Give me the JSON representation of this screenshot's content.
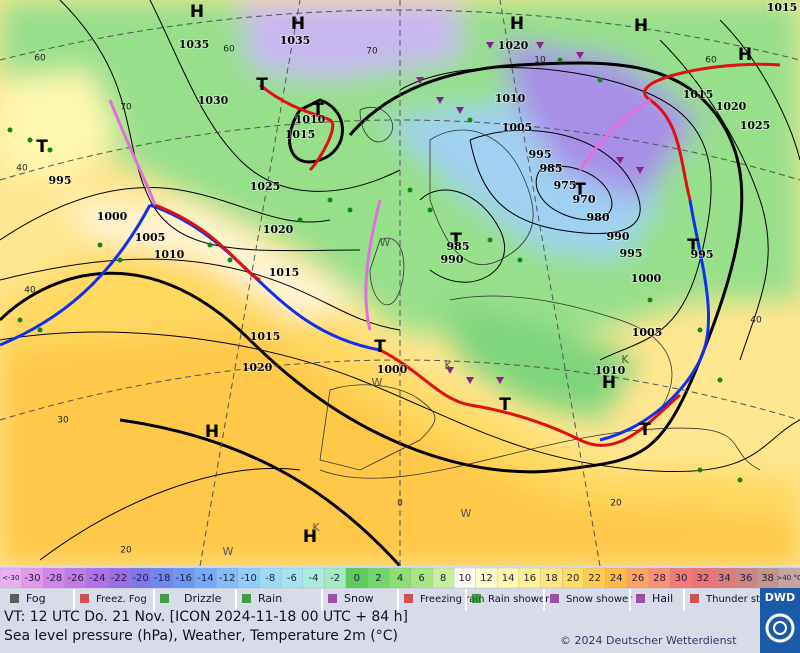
{
  "map": {
    "centers": [
      "H",
      "H",
      "H",
      "H",
      "H",
      "T",
      "T",
      "T",
      "T",
      "T",
      "T",
      "T",
      "T",
      "H",
      "H",
      "H",
      "T"
    ],
    "isobar_labels": [
      "1035",
      "1035",
      "1020",
      "1015",
      "1030",
      "1010",
      "1015",
      "1025",
      "1020",
      "995",
      "1000",
      "1005",
      "1010",
      "1015",
      "1015",
      "1020",
      "1010",
      "1005",
      "995",
      "985",
      "975",
      "970",
      "980",
      "990",
      "995",
      "985",
      "990",
      "1000",
      "1005",
      "1010",
      "1000",
      "1015",
      "1020",
      "1025",
      "995"
    ],
    "grid_labels": [
      "60",
      "70",
      "60",
      "70",
      "60",
      "40",
      "40",
      "30",
      "20",
      "0",
      "10",
      "20",
      "40"
    ],
    "weather_letters": [
      "W",
      "W",
      "W",
      "W",
      "K",
      "K",
      "K"
    ]
  },
  "legend": {
    "temperature_scale": [
      {
        "label": "<-30",
        "color": "#eab0ee"
      },
      {
        "label": "-30",
        "color": "#e09ae8"
      },
      {
        "label": "-28",
        "color": "#d286e8"
      },
      {
        "label": "-26",
        "color": "#c27ae8"
      },
      {
        "label": "-24",
        "color": "#b070e8"
      },
      {
        "label": "-22",
        "color": "#9c6ee4"
      },
      {
        "label": "-20",
        "color": "#8076e8"
      },
      {
        "label": "-18",
        "color": "#6e88f0"
      },
      {
        "label": "-16",
        "color": "#6c98f2"
      },
      {
        "label": "-14",
        "color": "#74aaf8"
      },
      {
        "label": "-12",
        "color": "#84bcf8"
      },
      {
        "label": "-10",
        "color": "#94ccf8"
      },
      {
        "label": "-8",
        "color": "#9cdaf6"
      },
      {
        "label": "-6",
        "color": "#a4e4ee"
      },
      {
        "label": "-4",
        "color": "#a8ecdc"
      },
      {
        "label": "-2",
        "color": "#a4ecc0"
      },
      {
        "label": "0",
        "color": "#5ccc5c"
      },
      {
        "label": "2",
        "color": "#72d66c"
      },
      {
        "label": "4",
        "color": "#8ede72"
      },
      {
        "label": "6",
        "color": "#a8e684"
      },
      {
        "label": "8",
        "color": "#c8f09c"
      },
      {
        "label": "10",
        "color": "#fafaf0"
      },
      {
        "label": "12",
        "color": "#fffcd0"
      },
      {
        "label": "14",
        "color": "#fff8b0"
      },
      {
        "label": "16",
        "color": "#fff094"
      },
      {
        "label": "18",
        "color": "#ffe67e"
      },
      {
        "label": "20",
        "color": "#ffdc64"
      },
      {
        "label": "22",
        "color": "#ffcc52"
      },
      {
        "label": "24",
        "color": "#ffba48"
      },
      {
        "label": "26",
        "color": "#ffa460"
      },
      {
        "label": "28",
        "color": "#fc9070"
      },
      {
        "label": "30",
        "color": "#f47a78"
      },
      {
        "label": "32",
        "color": "#ec7474"
      },
      {
        "label": "34",
        "color": "#dc7c7c"
      },
      {
        "label": "36",
        "color": "#cc8686"
      },
      {
        "label": "38",
        "color": "#c49488"
      },
      {
        "label": ">40 °C",
        "color": "#c4a4a4"
      }
    ],
    "weather": [
      "Fog",
      "Freez. Fog",
      "Drizzle",
      "Rain",
      "Snow",
      "Freezing rain",
      "Rain shower",
      "Snow shower",
      "Hail",
      "Thunder storm"
    ]
  },
  "footer": {
    "valid_time": "VT: 12 UTC Do.  21 Nov. [ICON 2024-11-18  00 UTC + 84 h]",
    "description": "Sea level pressure (hPa), Weather, Temperature 2m (°C)",
    "copyright": "© 2024 Deutscher Wetterdienst",
    "logo": "DWD"
  }
}
